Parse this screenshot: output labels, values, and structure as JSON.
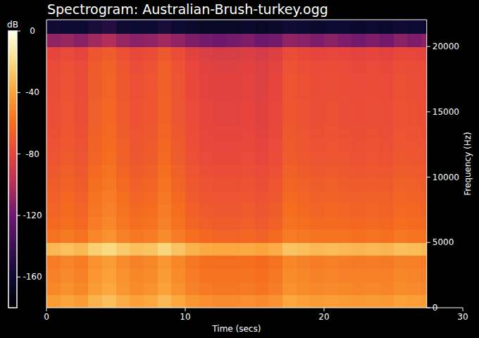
{
  "chart_data": {
    "type": "heatmap",
    "title": "Spectrogram: Australian-Brush-turkey.ogg",
    "xlabel": "Time (secs)",
    "ylabel": "Frequency (Hz)",
    "xlim": [
      0,
      30
    ],
    "ylim": [
      0,
      22050
    ],
    "xticks": [
      0,
      10,
      20,
      30
    ],
    "yticks": [
      0,
      5000,
      10000,
      15000,
      20000
    ],
    "x_edges": [
      0,
      1,
      2,
      3,
      4,
      5,
      6,
      7,
      8,
      9,
      10,
      11,
      12,
      13,
      14,
      15,
      16,
      17,
      18,
      19,
      20,
      21,
      22,
      23,
      24,
      25,
      26,
      27,
      27.4
    ],
    "y_edges": [
      0,
      1000,
      2000,
      3000,
      4000,
      5000,
      6000,
      7000,
      8000,
      9000,
      10000,
      11000,
      12000,
      13000,
      14000,
      15000,
      16000,
      17000,
      18000,
      19000,
      20000,
      21000,
      22050
    ],
    "values": [
      [
        -42,
        -39,
        -42,
        -34,
        -30,
        -36,
        -40,
        -38,
        -32,
        -38,
        -44,
        -47,
        -48,
        -48,
        -47,
        -49,
        -46,
        -38,
        -40,
        -42,
        -41,
        -42,
        -43,
        -42,
        -43,
        -40,
        -41,
        -42
      ],
      [
        -50,
        -47,
        -50,
        -42,
        -38,
        -44,
        -48,
        -46,
        -40,
        -46,
        -52,
        -55,
        -56,
        -56,
        -55,
        -57,
        -54,
        -46,
        -48,
        -50,
        -49,
        -50,
        -51,
        -50,
        -51,
        -48,
        -49,
        -50
      ],
      [
        -52,
        -49,
        -52,
        -44,
        -40,
        -46,
        -50,
        -48,
        -42,
        -48,
        -54,
        -57,
        -58,
        -58,
        -57,
        -59,
        -56,
        -48,
        -50,
        -52,
        -51,
        -52,
        -53,
        -52,
        -53,
        -50,
        -51,
        -52
      ],
      [
        -54,
        -51,
        -54,
        -46,
        -42,
        -48,
        -52,
        -50,
        -44,
        -50,
        -56,
        -59,
        -60,
        -60,
        -59,
        -61,
        -58,
        -50,
        -52,
        -54,
        -53,
        -54,
        -55,
        -54,
        -55,
        -52,
        -53,
        -54
      ],
      [
        -32,
        -29,
        -32,
        -24,
        -20,
        -26,
        -30,
        -28,
        -22,
        -28,
        -34,
        -37,
        -38,
        -38,
        -37,
        -39,
        -36,
        -28,
        -30,
        -32,
        -31,
        -32,
        -33,
        -32,
        -33,
        -30,
        -31,
        -32
      ],
      [
        -58,
        -55,
        -58,
        -50,
        -46,
        -52,
        -56,
        -54,
        -48,
        -54,
        -60,
        -63,
        -64,
        -64,
        -63,
        -65,
        -62,
        -54,
        -56,
        -58,
        -57,
        -58,
        -59,
        -58,
        -59,
        -56,
        -57,
        -58
      ],
      [
        -62,
        -59,
        -62,
        -54,
        -50,
        -56,
        -60,
        -58,
        -52,
        -58,
        -64,
        -67,
        -68,
        -68,
        -67,
        -69,
        -66,
        -58,
        -60,
        -62,
        -61,
        -62,
        -63,
        -62,
        -63,
        -60,
        -61,
        -62
      ],
      [
        -64,
        -61,
        -64,
        -56,
        -52,
        -58,
        -62,
        -60,
        -54,
        -60,
        -66,
        -69,
        -70,
        -70,
        -69,
        -71,
        -68,
        -60,
        -62,
        -64,
        -63,
        -64,
        -65,
        -64,
        -65,
        -62,
        -63,
        -64
      ],
      [
        -66,
        -63,
        -66,
        -58,
        -54,
        -60,
        -64,
        -62,
        -56,
        -62,
        -68,
        -71,
        -72,
        -72,
        -71,
        -73,
        -70,
        -62,
        -64,
        -66,
        -65,
        -66,
        -67,
        -66,
        -67,
        -64,
        -65,
        -66
      ],
      [
        -68,
        -65,
        -68,
        -60,
        -56,
        -62,
        -66,
        -64,
        -58,
        -64,
        -70,
        -73,
        -74,
        -74,
        -73,
        -75,
        -72,
        -64,
        -66,
        -68,
        -67,
        -68,
        -69,
        -68,
        -69,
        -66,
        -67,
        -68
      ],
      [
        -70,
        -67,
        -70,
        -62,
        -58,
        -64,
        -68,
        -66,
        -60,
        -66,
        -72,
        -75,
        -76,
        -76,
        -75,
        -77,
        -74,
        -66,
        -68,
        -70,
        -69,
        -70,
        -71,
        -70,
        -71,
        -68,
        -69,
        -70
      ],
      [
        -72,
        -69,
        -72,
        -64,
        -60,
        -66,
        -70,
        -68,
        -62,
        -68,
        -74,
        -77,
        -78,
        -78,
        -77,
        -79,
        -76,
        -68,
        -70,
        -72,
        -71,
        -72,
        -73,
        -72,
        -73,
        -70,
        -71,
        -72
      ],
      [
        -73,
        -70,
        -73,
        -65,
        -61,
        -67,
        -71,
        -69,
        -63,
        -69,
        -75,
        -78,
        -79,
        -79,
        -78,
        -80,
        -77,
        -69,
        -71,
        -73,
        -72,
        -73,
        -74,
        -73,
        -74,
        -71,
        -72,
        -73
      ],
      [
        -74,
        -71,
        -74,
        -66,
        -62,
        -68,
        -72,
        -70,
        -64,
        -70,
        -76,
        -79,
        -80,
        -80,
        -79,
        -81,
        -78,
        -70,
        -72,
        -74,
        -73,
        -74,
        -75,
        -74,
        -75,
        -72,
        -73,
        -74
      ],
      [
        -75,
        -72,
        -75,
        -67,
        -63,
        -69,
        -73,
        -71,
        -65,
        -71,
        -77,
        -80,
        -81,
        -81,
        -80,
        -82,
        -79,
        -71,
        -73,
        -75,
        -74,
        -75,
        -76,
        -75,
        -76,
        -73,
        -74,
        -75
      ],
      [
        -75,
        -72,
        -75,
        -67,
        -63,
        -69,
        -73,
        -71,
        -65,
        -71,
        -77,
        -80,
        -81,
        -81,
        -80,
        -82,
        -79,
        -71,
        -73,
        -75,
        -74,
        -75,
        -76,
        -75,
        -76,
        -73,
        -74,
        -75
      ],
      [
        -76,
        -73,
        -76,
        -68,
        -64,
        -70,
        -74,
        -72,
        -66,
        -72,
        -78,
        -81,
        -82,
        -82,
        -81,
        -83,
        -80,
        -72,
        -74,
        -76,
        -75,
        -76,
        -77,
        -76,
        -77,
        -74,
        -75,
        -76
      ],
      [
        -76,
        -73,
        -76,
        -68,
        -64,
        -70,
        -74,
        -72,
        -66,
        -72,
        -78,
        -81,
        -82,
        -82,
        -81,
        -83,
        -80,
        -72,
        -74,
        -76,
        -75,
        -76,
        -77,
        -76,
        -77,
        -74,
        -75,
        -76
      ],
      [
        -77,
        -74,
        -77,
        -69,
        -65,
        -71,
        -75,
        -73,
        -67,
        -73,
        -79,
        -82,
        -83,
        -83,
        -82,
        -84,
        -81,
        -73,
        -75,
        -77,
        -76,
        -77,
        -78,
        -77,
        -78,
        -75,
        -76,
        -77
      ],
      [
        -80,
        -77,
        -80,
        -72,
        -68,
        -74,
        -78,
        -76,
        -70,
        -76,
        -82,
        -85,
        -86,
        -86,
        -85,
        -87,
        -84,
        -76,
        -78,
        -80,
        -79,
        -80,
        -81,
        -80,
        -81,
        -78,
        -79,
        -80
      ],
      [
        -110,
        -108,
        -112,
        -105,
        -100,
        -108,
        -112,
        -110,
        -105,
        -110,
        -115,
        -118,
        -120,
        -118,
        -115,
        -120,
        -118,
        -110,
        -112,
        -115,
        -112,
        -115,
        -118,
        -115,
        -118,
        -112,
        -115,
        -112
      ],
      [
        -158,
        -160,
        -160,
        -155,
        -150,
        -158,
        -160,
        -160,
        -155,
        -160,
        -162,
        -165,
        -165,
        -165,
        -162,
        -165,
        -162,
        -158,
        -160,
        -162,
        -160,
        -160,
        -162,
        -160,
        -162,
        -158,
        -160,
        -160
      ]
    ],
    "colorbar_label": "dB",
    "colorbar_range": [
      -180,
      0
    ],
    "colorbar_ticks": [
      0,
      -40,
      -80,
      -120,
      -160
    ]
  }
}
